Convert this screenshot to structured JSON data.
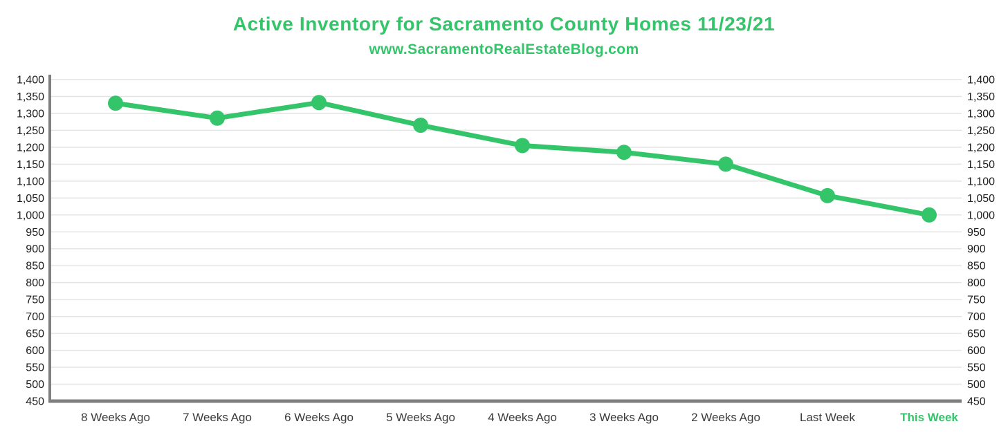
{
  "header": {
    "title": "Active Inventory for Sacramento County Homes 11/23/21",
    "subtitle": "www.SacramentoRealEstateBlog.com"
  },
  "colors": {
    "accent_green": "#34c46a",
    "axis_gray": "#7f7f7f",
    "gridline_gray": "#e4e4e4",
    "ytick_label": "#1c1c1c",
    "xtick_label": "#3b3b3b"
  },
  "chart_data": {
    "type": "line",
    "title": "Active Inventory for Sacramento County Homes 11/23/21",
    "subtitle": "www.SacramentoRealEstateBlog.com",
    "categories": [
      "8 Weeks Ago",
      "7 Weeks Ago",
      "6 Weeks Ago",
      "5 Weeks Ago",
      "4 Weeks Ago",
      "3 Weeks Ago",
      "2 Weeks Ago",
      "Last Week",
      "This Week"
    ],
    "series": [
      {
        "name": "Active Inventory",
        "values": [
          1330,
          1286,
          1332,
          1265,
          1205,
          1185,
          1150,
          1057,
          1000
        ]
      }
    ],
    "xlabel": "",
    "ylabel": "",
    "ylim": [
      450,
      1400
    ],
    "ytick_step": 50,
    "ytick_labels": [
      "1,400",
      "1,350",
      "1,300",
      "1,250",
      "1,200",
      "1,150",
      "1,100",
      "1,050",
      "1,000",
      "950",
      "900",
      "850",
      "800",
      "750",
      "700",
      "650",
      "600",
      "550",
      "500",
      "450"
    ],
    "y_axis_sides": "both",
    "grid": true,
    "legend_position": "none",
    "marker": "circle",
    "highlight_last_category": true
  }
}
